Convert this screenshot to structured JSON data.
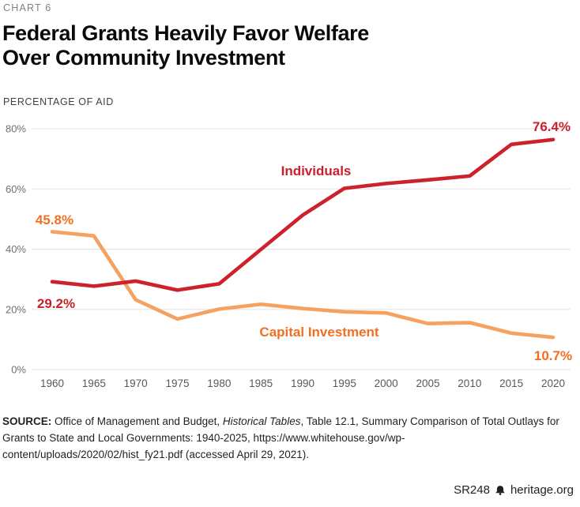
{
  "header": {
    "kicker": "CHART 6",
    "title_line1": "Federal Grants Heavily Favor Welfare",
    "title_line2": "Over Community Investment",
    "axis_label": "PERCENTAGE OF AID"
  },
  "chart_data": {
    "type": "line",
    "x": [
      1960,
      1965,
      1970,
      1975,
      1980,
      1985,
      1990,
      1995,
      2000,
      2005,
      2010,
      2015,
      2020
    ],
    "series": [
      {
        "name": "Individuals",
        "color": "#cd222b",
        "label_color": "#c9212c",
        "values": [
          29.2,
          27.7,
          29.4,
          26.4,
          28.5,
          39.9,
          51.3,
          60.2,
          61.8,
          63.0,
          64.3,
          74.8,
          76.4
        ],
        "start_label": "29.2%",
        "end_label": "76.4%"
      },
      {
        "name": "Capital Investment",
        "color": "#f5a161",
        "label_color": "#f26f21",
        "values": [
          45.8,
          44.4,
          23.2,
          16.8,
          20.1,
          21.7,
          20.3,
          19.2,
          18.8,
          15.3,
          15.6,
          12.1,
          10.7
        ],
        "start_label": "45.8%",
        "end_label": "10.7%"
      }
    ],
    "title": "Federal Grants Heavily Favor Welfare Over Community Investment",
    "xlabel": "",
    "ylabel": "PERCENTAGE OF AID",
    "ylim": [
      0,
      80
    ],
    "yticks": [
      {
        "value": 0,
        "label": "0%"
      },
      {
        "value": 20,
        "label": "20%"
      },
      {
        "value": 40,
        "label": "40%"
      },
      {
        "value": 60,
        "label": "60%"
      },
      {
        "value": 80,
        "label": "80%"
      }
    ],
    "grid": "horizontal",
    "legend": "inline-labels",
    "gridline_color": "#e3e3e3",
    "tick_label_color": "#6e6f72"
  },
  "source": {
    "label": "SOURCE:",
    "before_italic": " Office of Management and Budget, ",
    "italic": "Historical Tables",
    "after_italic": ", Table 12.1, Summary Comparison of Total Outlays for Grants to State and Local Governments: 1940-2025, https://www.whitehouse.gov/wp-content/uploads/2020/02/hist_fy21.pdf (accessed April 29, 2021)."
  },
  "footer": {
    "report_id": "SR248",
    "site": "heritage.org"
  }
}
